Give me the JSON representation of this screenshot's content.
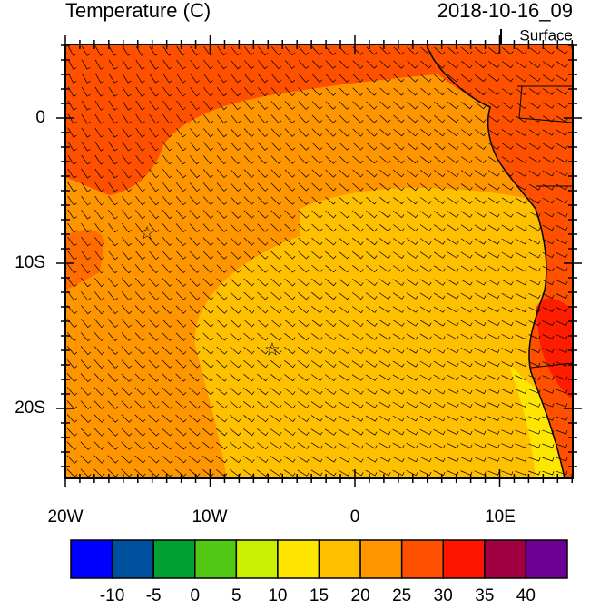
{
  "header": {
    "title": "Temperature (C)",
    "time": "2018-10-16_09",
    "level": "Surface"
  },
  "axes": {
    "lat_labels": [
      "0",
      "10S",
      "20S"
    ],
    "lon_labels": [
      "20W",
      "10W",
      "0",
      "10E"
    ]
  },
  "colorbar": {
    "levels": [
      -10,
      -5,
      0,
      5,
      10,
      15,
      20,
      25,
      30,
      35,
      40
    ],
    "colors": [
      "#0000ff",
      "#0050a0",
      "#00a032",
      "#50c814",
      "#c8f000",
      "#ffe600",
      "#ffc000",
      "#ff9600",
      "#ff5000",
      "#ff1400",
      "#a00040",
      "#6e0096"
    ]
  }
}
